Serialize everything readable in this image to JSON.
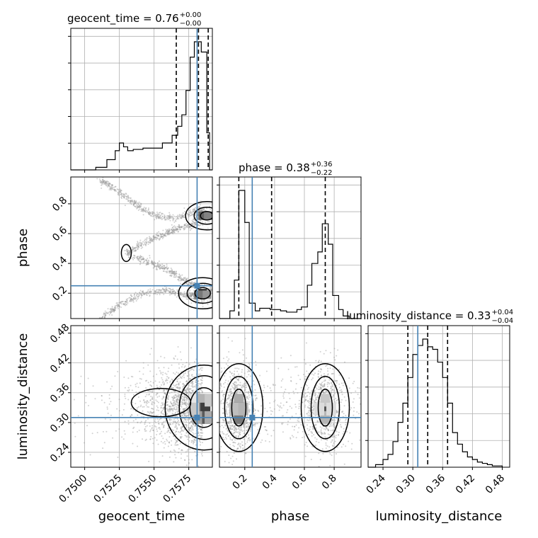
{
  "chart_data": {
    "type": "corner",
    "parameters": [
      "geocent_time",
      "phase",
      "luminosity_distance"
    ],
    "truths": {
      "geocent_time": 0.7581,
      "phase": 0.25,
      "luminosity_distance": 0.31
    },
    "titles": [
      {
        "param": "geocent_time",
        "text": "geocent_time = 0.76",
        "sup": "+0.00",
        "sub": "−0.00"
      },
      {
        "param": "phase",
        "text": "phase = 0.38",
        "sup": "+0.36",
        "sub": "−0.22"
      },
      {
        "param": "luminosity_distance",
        "text": "luminosity_distance = 0.33",
        "sup": "+0.04",
        "sub": "−0.04"
      }
    ],
    "axis_labels": {
      "x": [
        "geocent_time",
        "phase",
        "luminosity_distance"
      ],
      "y": [
        "phase",
        "luminosity_distance"
      ]
    },
    "ranges": {
      "geocent_time": [
        0.749,
        0.7592
      ],
      "phase": [
        0.03,
        0.98
      ],
      "luminosity_distance": [
        0.21,
        0.495
      ]
    },
    "ticks": {
      "geocent_time": {
        "values": [
          0.75,
          0.7525,
          0.755,
          0.7575
        ],
        "labels": [
          "0.7500",
          "0.7525",
          "0.7550",
          "0.7575"
        ]
      },
      "phase": {
        "values": [
          0.2,
          0.4,
          0.6,
          0.8
        ],
        "labels": [
          "0.2",
          "0.4",
          "0.6",
          "0.8"
        ]
      },
      "luminosity_distance": {
        "values": [
          0.24,
          0.3,
          0.36,
          0.42,
          0.48
        ],
        "labels": [
          "0.24",
          "0.30",
          "0.36",
          "0.42",
          "0.48"
        ]
      }
    },
    "quantiles": {
      "geocent_time": [
        0.7566,
        0.7582,
        0.7589
      ],
      "phase": [
        0.16,
        0.38,
        0.74
      ],
      "luminosity_distance": [
        0.29,
        0.33,
        0.37
      ]
    },
    "histograms": {
      "geocent_time": {
        "edges": [
          0.749,
          0.7508,
          0.7516,
          0.7522,
          0.7525,
          0.7528,
          0.7531,
          0.7535,
          0.7538,
          0.7542,
          0.7545,
          0.7549,
          0.7556,
          0.7563,
          0.7567,
          0.757,
          0.7573,
          0.7576,
          0.7579,
          0.7581,
          0.7584,
          0.7588,
          0.759,
          0.7592
        ],
        "counts": [
          0,
          0.02,
          0.08,
          0.15,
          0.21,
          0.18,
          0.15,
          0.16,
          0.16,
          0.17,
          0.17,
          0.17,
          0.21,
          0.27,
          0.34,
          0.43,
          0.62,
          0.88,
          1.0,
          1.0,
          0.92,
          0.29,
          0
        ]
      },
      "phase": {
        "edges": [
          0.03,
          0.1,
          0.13,
          0.16,
          0.2,
          0.23,
          0.27,
          0.3,
          0.34,
          0.37,
          0.41,
          0.44,
          0.48,
          0.51,
          0.55,
          0.58,
          0.62,
          0.65,
          0.69,
          0.72,
          0.76,
          0.79,
          0.83,
          0.86,
          0.9,
          0.98
        ],
        "counts": [
          0,
          0.06,
          0.3,
          1.0,
          0.75,
          0.12,
          0.06,
          0.08,
          0.08,
          0.07,
          0.07,
          0.06,
          0.05,
          0.05,
          0.07,
          0.09,
          0.26,
          0.43,
          0.52,
          0.74,
          0.58,
          0.18,
          0.07,
          0.02,
          0
        ]
      },
      "luminosity_distance": {
        "edges": [
          0.21,
          0.225,
          0.24,
          0.25,
          0.26,
          0.27,
          0.28,
          0.29,
          0.3,
          0.31,
          0.32,
          0.33,
          0.34,
          0.35,
          0.36,
          0.37,
          0.38,
          0.39,
          0.4,
          0.41,
          0.42,
          0.43,
          0.44,
          0.45,
          0.46,
          0.48
        ],
        "counts": [
          0,
          0.02,
          0.06,
          0.1,
          0.2,
          0.35,
          0.5,
          0.7,
          0.88,
          0.95,
          1.0,
          0.94,
          0.92,
          0.82,
          0.7,
          0.5,
          0.27,
          0.18,
          0.12,
          0.08,
          0.06,
          0.04,
          0.03,
          0.02,
          0.01
        ]
      }
    },
    "scatter_shape": {
      "phase_vs_geocent_time": [
        [
          0.7511,
          0.96
        ],
        [
          0.7536,
          0.75
        ],
        [
          0.7558,
          0.66
        ],
        [
          0.7583,
          0.8
        ],
        [
          0.759,
          0.69
        ]
      ],
      "phase_wave_lower": [
        [
          0.7511,
          0.03
        ],
        [
          0.7536,
          0.24
        ],
        [
          0.7558,
          0.26
        ],
        [
          0.7583,
          0.16
        ]
      ],
      "phase_wave_middle": [
        [
          0.753,
          0.47
        ],
        [
          0.7556,
          0.38
        ],
        [
          0.7575,
          0.25
        ],
        [
          0.7564,
          0.58
        ],
        [
          0.7578,
          0.65
        ]
      ]
    },
    "contour_levels": 3,
    "colors": {
      "hist": "#000000",
      "truth": "#4682b4",
      "quantile": "#000000",
      "points": "#9a9a9a",
      "grid": "#b0b0b0"
    },
    "grid": true
  }
}
